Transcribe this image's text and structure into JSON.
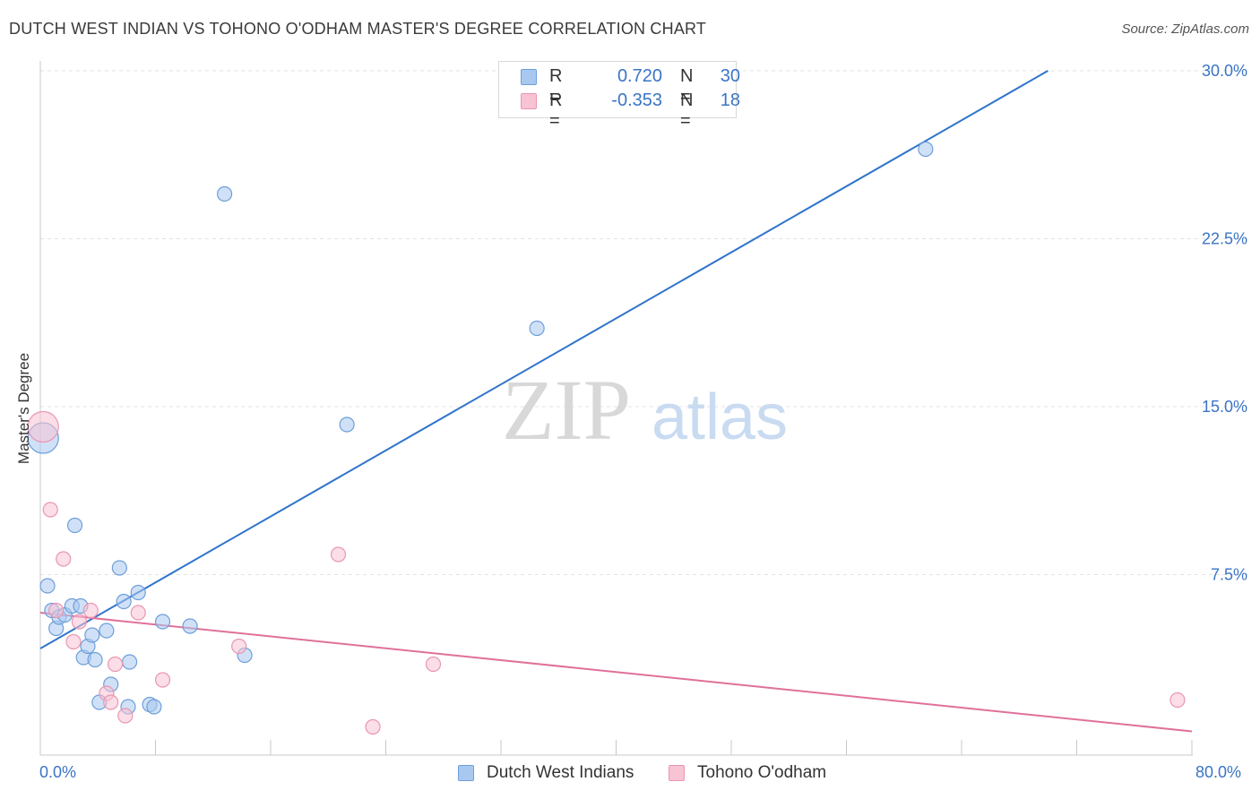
{
  "header": {
    "title": "DUTCH WEST INDIAN VS TOHONO O'ODHAM MASTER'S DEGREE CORRELATION CHART",
    "source": "Source: ZipAtlas.com"
  },
  "watermark": {
    "zip": "ZIP",
    "atlas": "atlas"
  },
  "legend_top": {
    "rows": [
      {
        "r_label": "R =",
        "r_value": "0.720",
        "n_label": "N =",
        "n_value": "30",
        "color": "#a9c8f0",
        "border": "#6d9fd9"
      },
      {
        "r_label": "R =",
        "r_value": "-0.353",
        "n_label": "N =",
        "n_value": "18",
        "color": "#f8c3d3",
        "border": "#e996b2"
      }
    ]
  },
  "legend_bottom": {
    "items": [
      {
        "label": "Dutch West Indians",
        "color": "#a9c8f0",
        "border": "#6d9fd9"
      },
      {
        "label": "Tohono O'odham",
        "color": "#f8c3d3",
        "border": "#e996b2"
      }
    ]
  },
  "chart_data": {
    "type": "scatter",
    "title": "DUTCH WEST INDIAN VS TOHONO O'ODHAM MASTER'S DEGREE CORRELATION CHART",
    "xlabel": "",
    "ylabel": "Master's Degree",
    "xlim": [
      0,
      80
    ],
    "ylim": [
      0,
      30
    ],
    "x_tick_labels": [
      "0.0%",
      "80.0%"
    ],
    "y_ticks": [
      7.5,
      15.0,
      22.5,
      30.0
    ],
    "y_tick_labels": [
      "7.5%",
      "15.0%",
      "22.5%",
      "30.0%"
    ],
    "grid": "horizontal dashed",
    "legend": "bottom-center",
    "colors": {
      "blue_line": "#2f74cc",
      "pink_line": "#e0709a",
      "tick_text": "#3a74c4"
    },
    "series": [
      {
        "name": "Dutch West Indians",
        "color": "#a9c8f0",
        "edge": "#6d9fd9",
        "points": [
          {
            "x": 0.2,
            "y": 13.6,
            "big": true
          },
          {
            "x": 0.5,
            "y": 7.0
          },
          {
            "x": 0.8,
            "y": 5.9
          },
          {
            "x": 1.1,
            "y": 5.1
          },
          {
            "x": 1.3,
            "y": 5.6
          },
          {
            "x": 1.7,
            "y": 5.7
          },
          {
            "x": 2.2,
            "y": 6.1
          },
          {
            "x": 2.4,
            "y": 9.7
          },
          {
            "x": 2.8,
            "y": 6.1
          },
          {
            "x": 3.0,
            "y": 3.8
          },
          {
            "x": 3.3,
            "y": 4.3
          },
          {
            "x": 3.6,
            "y": 4.8
          },
          {
            "x": 3.8,
            "y": 3.7
          },
          {
            "x": 4.1,
            "y": 1.8
          },
          {
            "x": 4.6,
            "y": 5.0
          },
          {
            "x": 4.9,
            "y": 2.6
          },
          {
            "x": 5.5,
            "y": 7.8
          },
          {
            "x": 5.8,
            "y": 6.3
          },
          {
            "x": 6.1,
            "y": 1.6
          },
          {
            "x": 6.2,
            "y": 3.6
          },
          {
            "x": 6.8,
            "y": 6.7
          },
          {
            "x": 7.6,
            "y": 1.7
          },
          {
            "x": 7.9,
            "y": 1.6
          },
          {
            "x": 8.5,
            "y": 5.4
          },
          {
            "x": 10.4,
            "y": 5.2
          },
          {
            "x": 12.8,
            "y": 24.5
          },
          {
            "x": 14.2,
            "y": 3.9
          },
          {
            "x": 21.3,
            "y": 14.2
          },
          {
            "x": 34.5,
            "y": 18.5
          },
          {
            "x": 61.5,
            "y": 26.5
          }
        ]
      },
      {
        "name": "Tohono O'odham",
        "color": "#f8c3d3",
        "edge": "#e996b2",
        "points": [
          {
            "x": 0.2,
            "y": 14.1,
            "big": true
          },
          {
            "x": 0.7,
            "y": 10.4
          },
          {
            "x": 1.1,
            "y": 5.9
          },
          {
            "x": 1.6,
            "y": 8.2
          },
          {
            "x": 2.3,
            "y": 4.5
          },
          {
            "x": 2.7,
            "y": 5.4
          },
          {
            "x": 3.5,
            "y": 5.9
          },
          {
            "x": 4.6,
            "y": 2.2
          },
          {
            "x": 4.9,
            "y": 1.8
          },
          {
            "x": 5.2,
            "y": 3.5
          },
          {
            "x": 5.9,
            "y": 1.2
          },
          {
            "x": 6.8,
            "y": 5.8
          },
          {
            "x": 8.5,
            "y": 2.8
          },
          {
            "x": 13.8,
            "y": 4.3
          },
          {
            "x": 20.7,
            "y": 8.4
          },
          {
            "x": 23.1,
            "y": 0.7
          },
          {
            "x": 27.3,
            "y": 3.5
          },
          {
            "x": 79.0,
            "y": 1.9
          }
        ]
      }
    ],
    "trend_lines": [
      {
        "series": "Dutch West Indians",
        "x": [
          0,
          70
        ],
        "y": [
          4.2,
          30.0
        ]
      },
      {
        "series": "Tohono O'odham",
        "x": [
          0,
          80
        ],
        "y": [
          5.8,
          0.5
        ]
      }
    ]
  }
}
